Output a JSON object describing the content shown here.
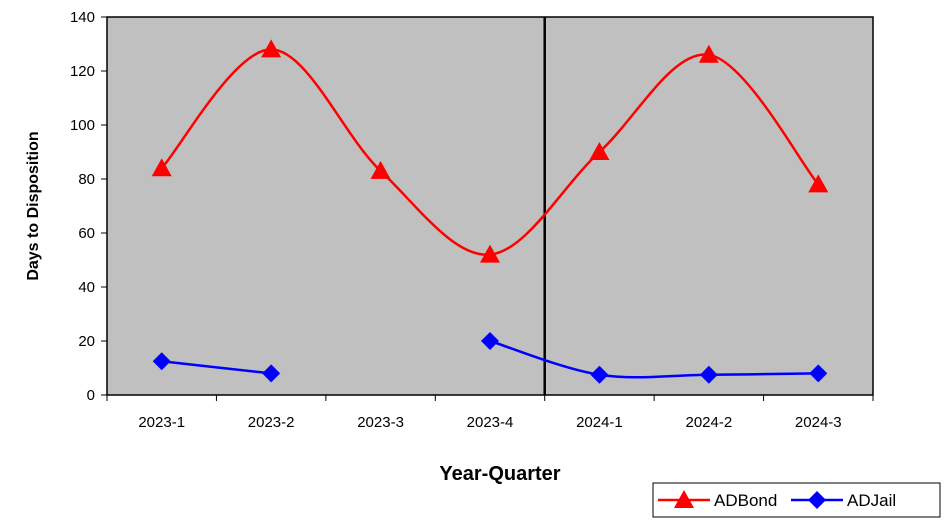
{
  "chart_data": {
    "type": "line",
    "categories": [
      "2023-1",
      "2023-2",
      "2023-3",
      "2023-4",
      "2024-1",
      "2024-2",
      "2024-3"
    ],
    "series": [
      {
        "name": "ADBond",
        "values": [
          84,
          128,
          83,
          52,
          90,
          126,
          78
        ],
        "color": "#ff0000",
        "marker": "triangle",
        "smooth": true
      },
      {
        "name": "ADJail",
        "values": [
          12.5,
          8,
          null,
          20,
          7.5,
          7.5,
          8
        ],
        "color": "#0000ff",
        "marker": "diamond",
        "smooth": true
      }
    ],
    "xlabel": "Year-Quarter",
    "ylabel": "Days to Disposition",
    "ylim": [
      0,
      140
    ],
    "yticks": [
      0,
      20,
      40,
      60,
      80,
      100,
      120,
      140
    ],
    "plot_background": "#c0c0c0",
    "vertical_divider_between": [
      "2023-4",
      "2024-1"
    ],
    "legend_position": "bottom-right"
  }
}
